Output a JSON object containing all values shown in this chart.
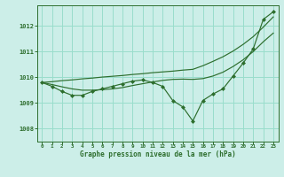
{
  "xlabel": "Graphe pression niveau de la mer (hPa)",
  "bg_color": "#cceee8",
  "grid_color": "#99ddcc",
  "line_color": "#2d6e2d",
  "x_ticks": [
    0,
    1,
    2,
    3,
    4,
    5,
    6,
    7,
    8,
    9,
    10,
    11,
    12,
    13,
    14,
    15,
    16,
    17,
    18,
    19,
    20,
    21,
    22,
    23
  ],
  "ylim": [
    1007.5,
    1012.8
  ],
  "y_ticks": [
    1008,
    1009,
    1010,
    1011,
    1012
  ],
  "series_main": [
    1009.8,
    1009.65,
    1009.45,
    1009.3,
    1009.3,
    1009.45,
    1009.55,
    1009.65,
    1009.75,
    1009.85,
    1009.9,
    1009.8,
    1009.65,
    1009.1,
    1008.85,
    1008.3,
    1009.1,
    1009.35,
    1009.55,
    1010.05,
    1010.55,
    1011.1,
    1012.25,
    1012.55
  ],
  "series_smooth": [
    1009.8,
    1009.72,
    1009.63,
    1009.55,
    1009.5,
    1009.5,
    1009.52,
    1009.55,
    1009.6,
    1009.68,
    1009.75,
    1009.82,
    1009.88,
    1009.92,
    1009.93,
    1009.92,
    1009.95,
    1010.05,
    1010.2,
    1010.42,
    1010.68,
    1011.0,
    1011.38,
    1011.72
  ],
  "series_linear": [
    1009.8,
    1009.83,
    1009.87,
    1009.9,
    1009.94,
    1009.97,
    1010.01,
    1010.04,
    1010.07,
    1010.11,
    1010.14,
    1010.18,
    1010.21,
    1010.24,
    1010.28,
    1010.31,
    1010.45,
    1010.62,
    1010.8,
    1011.02,
    1011.28,
    1011.58,
    1011.95,
    1012.35
  ]
}
